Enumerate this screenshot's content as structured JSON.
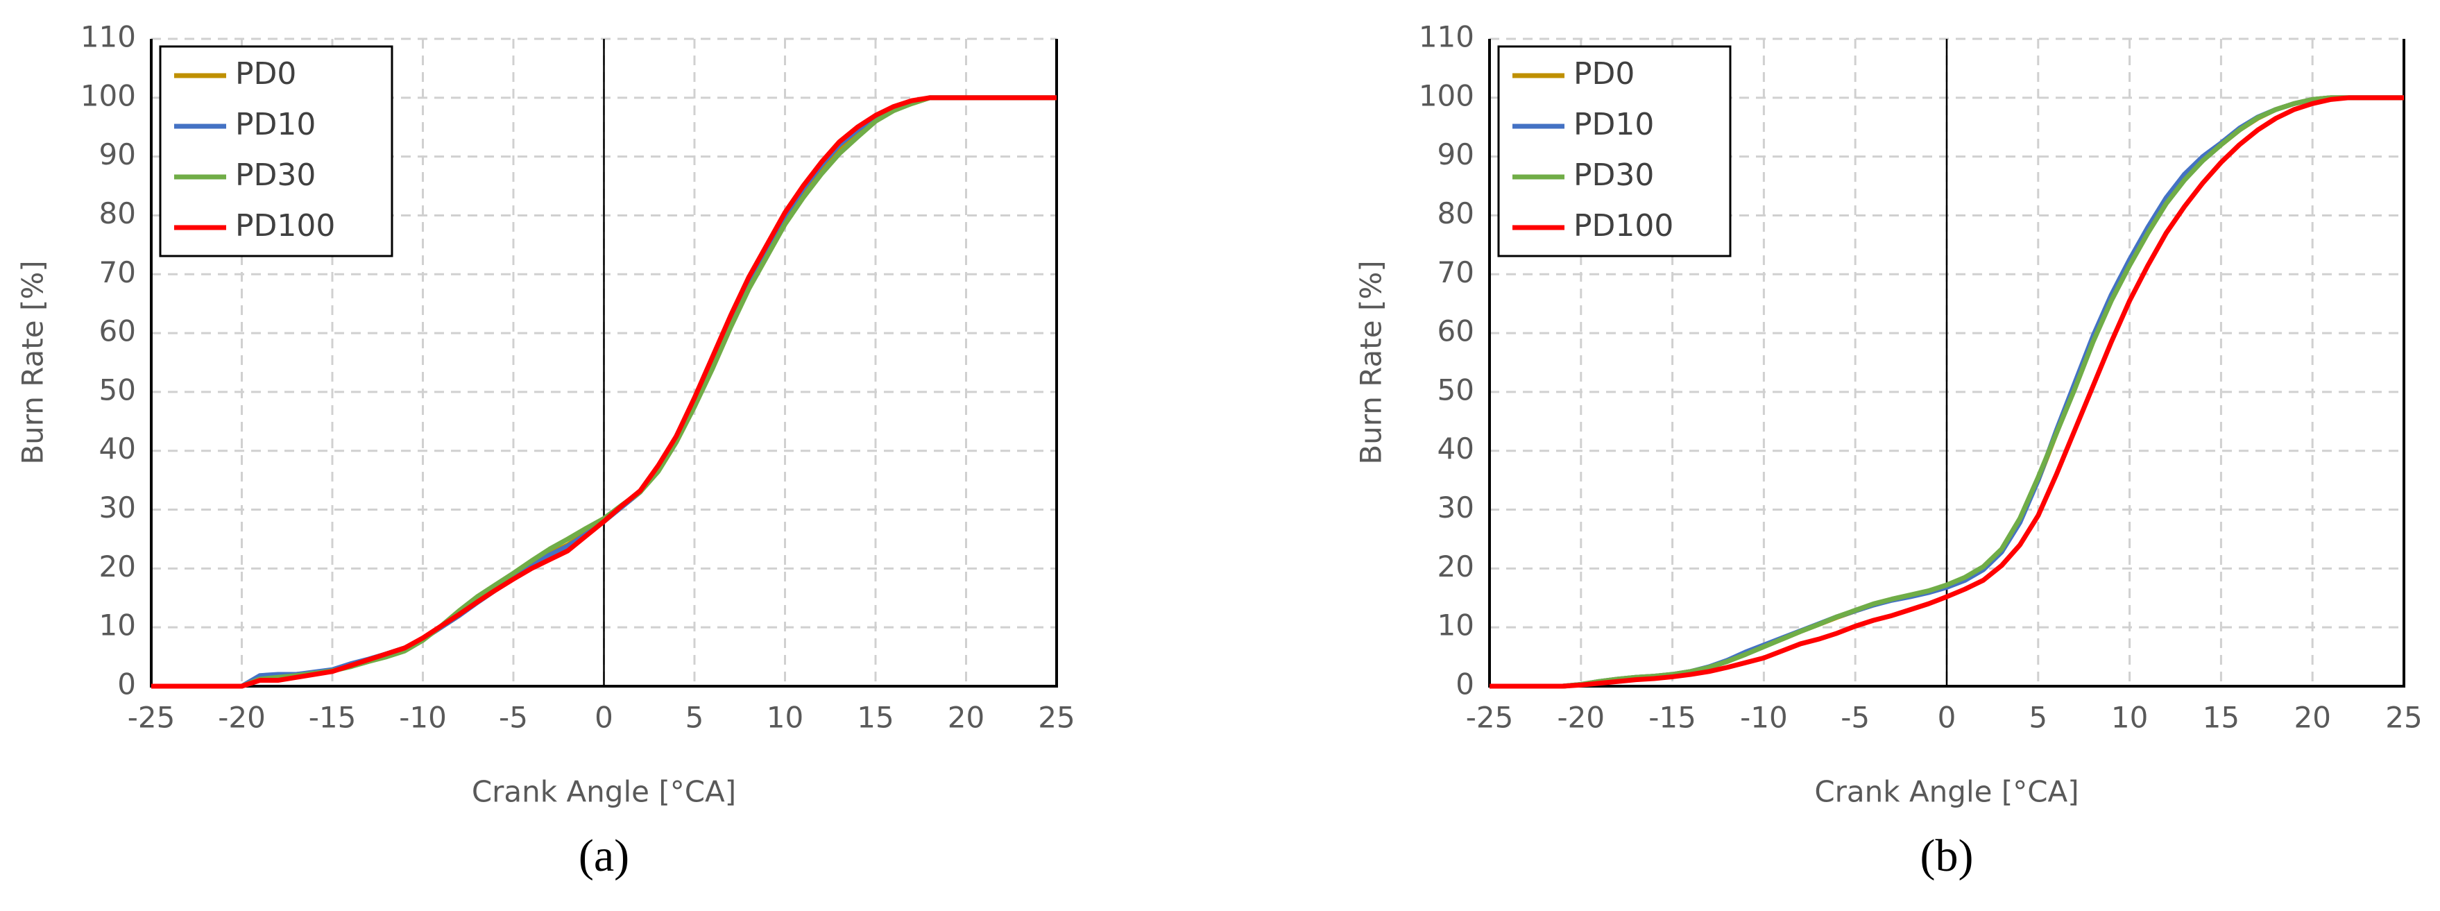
{
  "chart_data": [
    {
      "type": "line",
      "caption": "(a)",
      "x_label": "Crank Angle [°CA]",
      "y_label": "Burn Rate [%]",
      "x": [
        -25,
        -24,
        -23,
        -22,
        -21,
        -20,
        -19,
        -18,
        -17,
        -16,
        -15,
        -14,
        -13,
        -12,
        -11,
        -10,
        -9,
        -8,
        -7,
        -6,
        -5,
        -4,
        -3,
        -2,
        -1,
        0,
        1,
        2,
        3,
        4,
        5,
        6,
        7,
        8,
        9,
        10,
        11,
        12,
        13,
        14,
        15,
        16,
        17,
        18,
        19,
        20,
        21,
        22,
        23,
        24,
        25
      ],
      "xlim": [
        -25,
        25
      ],
      "xticks": [
        -25,
        -20,
        -15,
        -10,
        -5,
        0,
        5,
        10,
        15,
        20,
        25
      ],
      "ylim": [
        0,
        110
      ],
      "yticks": [
        0,
        10,
        20,
        30,
        40,
        50,
        60,
        70,
        80,
        90,
        100,
        110
      ],
      "grid": true,
      "series": [
        {
          "name": "PD0",
          "color": "#bf9000",
          "values": [
            0,
            0,
            0,
            0,
            0,
            0,
            1.5,
            1.8,
            2,
            2.3,
            2.7,
            3.5,
            4.5,
            5.5,
            6.5,
            8,
            10,
            12,
            14.5,
            16.5,
            18.5,
            20.5,
            22.5,
            24,
            26,
            28,
            30.5,
            33,
            37,
            42,
            48,
            55,
            62,
            68.5,
            74,
            79.5,
            84,
            88,
            91.5,
            94,
            96.5,
            98,
            99,
            100,
            100,
            100,
            100,
            100,
            100,
            100,
            100
          ]
        },
        {
          "name": "PD10",
          "color": "#4472c4",
          "values": [
            0,
            0,
            0,
            0,
            0,
            0,
            1.8,
            2,
            2,
            2.4,
            2.8,
            3.8,
            4.6,
            5.5,
            6.5,
            8,
            10,
            12,
            14.2,
            16.3,
            18.3,
            20.3,
            22.3,
            23.8,
            25.8,
            28,
            30.5,
            33,
            37,
            42.5,
            48.5,
            55.5,
            62.5,
            69,
            74.5,
            80,
            84.5,
            88.5,
            92,
            94.5,
            96.8,
            98.3,
            99.2,
            100,
            100,
            100,
            100,
            100,
            100,
            100,
            100
          ]
        },
        {
          "name": "PD30",
          "color": "#70ad47",
          "values": [
            0,
            0,
            0,
            0,
            0,
            0,
            1.2,
            1.5,
            1.8,
            2.2,
            2.6,
            3.3,
            4.2,
            5,
            6,
            7.8,
            10.2,
            12.8,
            15.2,
            17.2,
            19.2,
            21.3,
            23.3,
            25,
            26.8,
            28.5,
            30.8,
            33,
            36.5,
            41.5,
            47.5,
            54,
            61,
            67.5,
            73,
            78.5,
            83,
            87,
            90.5,
            93.3,
            96,
            97.8,
            99,
            100,
            100,
            100,
            100,
            100,
            100,
            100,
            100
          ]
        },
        {
          "name": "PD100",
          "color": "#ff0000",
          "values": [
            0,
            0,
            0,
            0,
            0,
            0,
            1,
            1,
            1.5,
            2,
            2.5,
            3.5,
            4.5,
            5.5,
            6.5,
            8.2,
            10.2,
            12.2,
            14.3,
            16.3,
            18.2,
            20,
            21.5,
            23,
            25.5,
            28,
            30.7,
            33.2,
            37.5,
            42.5,
            49,
            56,
            63,
            69.5,
            75,
            80.5,
            85,
            89,
            92.5,
            95,
            97,
            98.5,
            99.5,
            100,
            100,
            100,
            100,
            100,
            100,
            100,
            100
          ]
        }
      ]
    },
    {
      "type": "line",
      "caption": "(b)",
      "x_label": "Crank Angle [°CA]",
      "y_label": "Burn Rate [%]",
      "x": [
        -25,
        -24,
        -23,
        -22,
        -21,
        -20,
        -19,
        -18,
        -17,
        -16,
        -15,
        -14,
        -13,
        -12,
        -11,
        -10,
        -9,
        -8,
        -7,
        -6,
        -5,
        -4,
        -3,
        -2,
        -1,
        0,
        1,
        2,
        3,
        4,
        5,
        6,
        7,
        8,
        9,
        10,
        11,
        12,
        13,
        14,
        15,
        16,
        17,
        18,
        19,
        20,
        21,
        22,
        23,
        24,
        25
      ],
      "xlim": [
        -25,
        25
      ],
      "xticks": [
        -25,
        -20,
        -15,
        -10,
        -5,
        0,
        5,
        10,
        15,
        20,
        25
      ],
      "ylim": [
        0,
        110
      ],
      "yticks": [
        0,
        10,
        20,
        30,
        40,
        50,
        60,
        70,
        80,
        90,
        100,
        110
      ],
      "grid": true,
      "series": [
        {
          "name": "PD0",
          "color": "#bf9000",
          "values": [
            0,
            0,
            0,
            0,
            0,
            0.3,
            0.8,
            1.2,
            1.5,
            1.7,
            2,
            2.5,
            3.2,
            4.2,
            5.5,
            6.8,
            8,
            9.3,
            10.5,
            11.7,
            12.8,
            13.8,
            14.7,
            15.3,
            16,
            17,
            18.2,
            20,
            23,
            28,
            35,
            43,
            51,
            59,
            66,
            72,
            77.5,
            82.5,
            86.5,
            89.5,
            92,
            94.5,
            96.5,
            98,
            99,
            99.7,
            100,
            100,
            100,
            100,
            100
          ]
        },
        {
          "name": "PD10",
          "color": "#4472c4",
          "values": [
            0,
            0,
            0,
            0,
            0,
            0.3,
            0.8,
            1.2,
            1.5,
            1.7,
            2,
            2.5,
            3.3,
            4.4,
            5.8,
            7,
            8.2,
            9.4,
            10.6,
            11.8,
            12.8,
            13.8,
            14.6,
            15.2,
            15.9,
            16.8,
            18,
            19.8,
            22.8,
            27.8,
            35,
            43.5,
            51.5,
            59.5,
            66.5,
            72.5,
            78,
            83,
            87,
            90,
            92.3,
            94.8,
            96.7,
            98,
            99,
            99.7,
            100,
            100,
            100,
            100,
            100
          ]
        },
        {
          "name": "PD30",
          "color": "#70ad47",
          "values": [
            0,
            0,
            0,
            0,
            0,
            0.3,
            0.8,
            1.2,
            1.5,
            1.7,
            2,
            2.5,
            3.2,
            4.2,
            5.4,
            6.7,
            8,
            9.3,
            10.5,
            11.8,
            12.9,
            14,
            14.8,
            15.5,
            16.2,
            17.2,
            18.5,
            20.3,
            23.3,
            28.5,
            35.5,
            43,
            50.5,
            58.5,
            65.5,
            71.5,
            77,
            82,
            86,
            89.3,
            92,
            94.5,
            96.6,
            98,
            99,
            99.7,
            100,
            100,
            100,
            100,
            100
          ]
        },
        {
          "name": "PD100",
          "color": "#ff0000",
          "values": [
            0,
            0,
            0,
            0,
            0,
            0.2,
            0.5,
            0.8,
            1.1,
            1.3,
            1.6,
            2,
            2.5,
            3.2,
            4,
            4.8,
            6,
            7.2,
            8,
            9,
            10.2,
            11.2,
            12,
            13,
            14,
            15.2,
            16.5,
            18,
            20.5,
            24,
            29,
            36,
            43.5,
            51,
            58.5,
            65.5,
            71.5,
            77,
            81.5,
            85.5,
            89,
            92,
            94.5,
            96.5,
            98,
            99,
            99.7,
            100,
            100,
            100,
            100
          ]
        }
      ]
    }
  ]
}
